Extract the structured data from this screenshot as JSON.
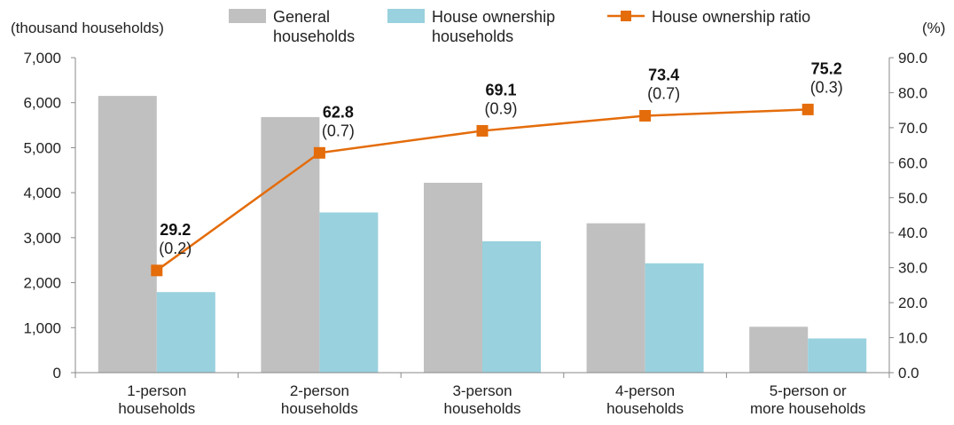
{
  "chart_data": {
    "type": "bar",
    "categories": [
      [
        "1-person",
        "households"
      ],
      [
        "2-person",
        "households"
      ],
      [
        "3-person",
        "households"
      ],
      [
        "4-person",
        "households"
      ],
      [
        "5-person or",
        "more households"
      ]
    ],
    "series": [
      {
        "name": "General households",
        "legend_lines": [
          "General",
          "households"
        ],
        "kind": "bar",
        "axis": "left",
        "color": "#c0c0c0",
        "values": [
          6150,
          5680,
          4220,
          3320,
          1020
        ]
      },
      {
        "name": "House ownership households",
        "legend_lines": [
          "House ownership",
          "households"
        ],
        "kind": "bar",
        "axis": "left",
        "color": "#99d1de",
        "values": [
          1790,
          3560,
          2920,
          2430,
          760
        ]
      },
      {
        "name": "House ownership ratio",
        "legend_lines": [
          "House ownership ratio"
        ],
        "kind": "line",
        "axis": "right",
        "color": "#e46c0a",
        "values": [
          29.2,
          62.8,
          69.1,
          73.4,
          75.2
        ],
        "value_labels": [
          "29.2",
          "62.8",
          "69.1",
          "73.4",
          "75.2"
        ],
        "change_labels": [
          "(0.2)",
          "(0.7)",
          "(0.9)",
          "(0.7)",
          "(0.3)"
        ]
      }
    ],
    "left_axis": {
      "unit": "(thousand households)",
      "range": [
        0,
        7000
      ],
      "ticks": [
        "0",
        "1,000",
        "2,000",
        "3,000",
        "4,000",
        "5,000",
        "6,000",
        "7,000"
      ]
    },
    "right_axis": {
      "unit": "(%)",
      "range": [
        0,
        90
      ],
      "ticks": [
        "0.0",
        "10.0",
        "20.0",
        "30.0",
        "40.0",
        "50.0",
        "60.0",
        "70.0",
        "80.0",
        "90.0"
      ]
    },
    "grid": false,
    "legend_position": "top"
  }
}
